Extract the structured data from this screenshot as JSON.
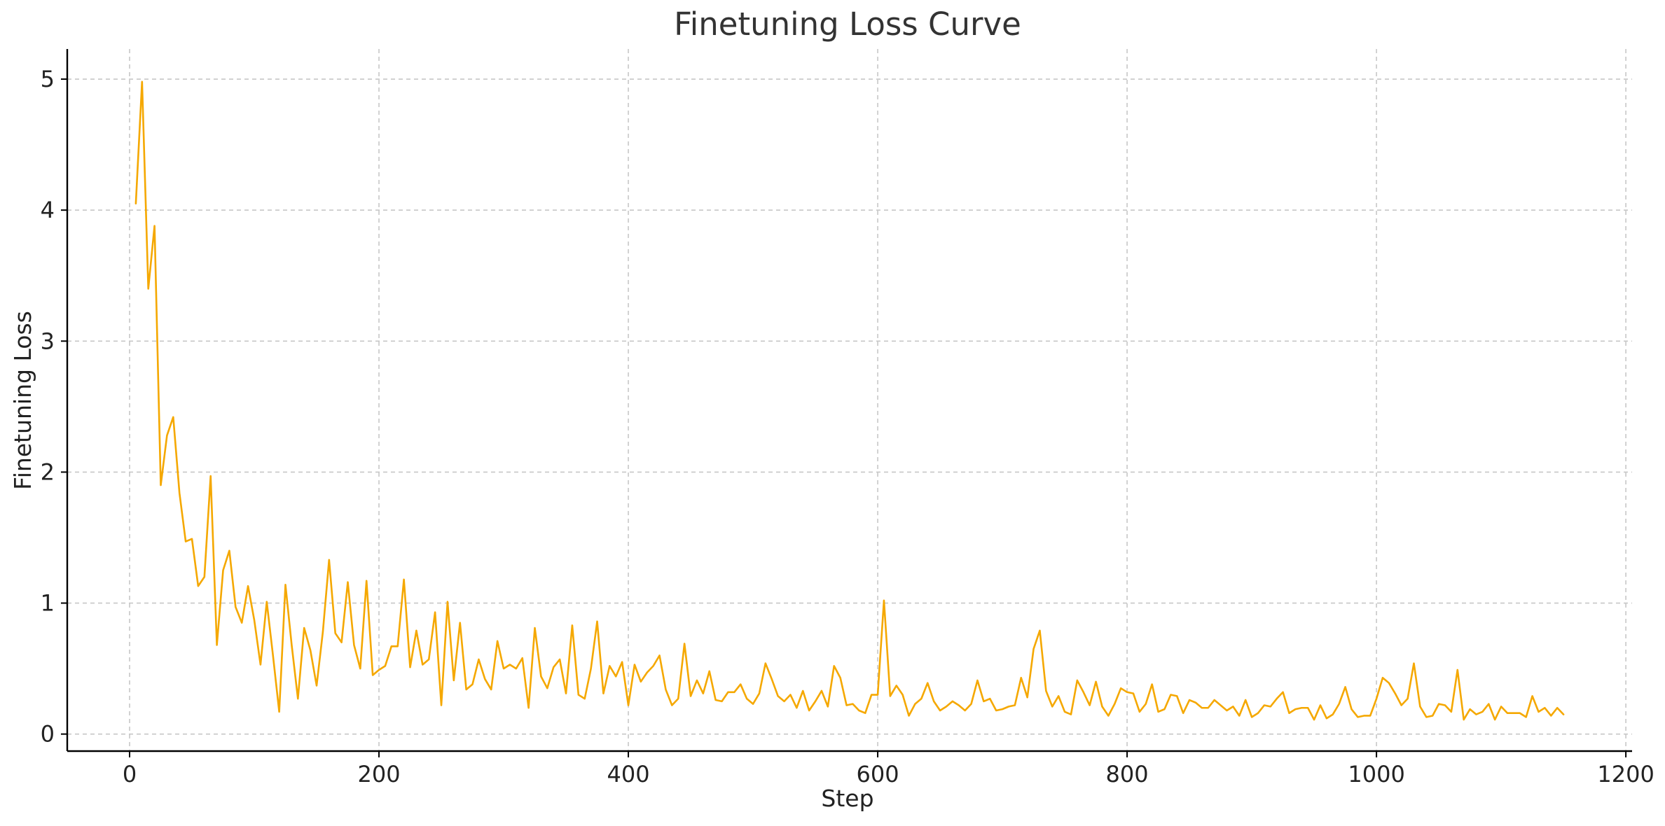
{
  "chart_data": {
    "type": "line",
    "title": "Finetuning Loss Curve",
    "xlabel": "Step",
    "ylabel": "Finetuning Loss",
    "xlim": [
      -50,
      1205
    ],
    "ylim": [
      -0.13,
      5.23
    ],
    "xticks": [
      0,
      200,
      400,
      600,
      800,
      1000,
      1200
    ],
    "yticks": [
      0,
      1,
      2,
      3,
      4,
      5
    ],
    "grid": true,
    "legend": "none",
    "colors": {
      "line": "#f5a800",
      "grid": "#c7c7c7",
      "axis": "#000000"
    },
    "series": [
      {
        "x": [
          5,
          10,
          15,
          20,
          25,
          30,
          35,
          40,
          45,
          50,
          55,
          60,
          65,
          70,
          75,
          80,
          85,
          90,
          95,
          100,
          105,
          110,
          115,
          120,
          125,
          130,
          135,
          140,
          145,
          150,
          155,
          160,
          165,
          170,
          175,
          180,
          185,
          190,
          195,
          200,
          205,
          210,
          215,
          220,
          225,
          230,
          235,
          240,
          245,
          250,
          255,
          260,
          265,
          270,
          275,
          280,
          285,
          290,
          295,
          300,
          305,
          310,
          315,
          320,
          325,
          330,
          335,
          340,
          345,
          350,
          355,
          360,
          365,
          370,
          375,
          380,
          385,
          390,
          395,
          400,
          405,
          410,
          415,
          420,
          425,
          430,
          435,
          440,
          445,
          450,
          455,
          460,
          465,
          470,
          475,
          480,
          485,
          490,
          495,
          500,
          505,
          510,
          515,
          520,
          525,
          530,
          535,
          540,
          545,
          550,
          555,
          560,
          565,
          570,
          575,
          580,
          585,
          590,
          595,
          600,
          605,
          610,
          615,
          620,
          625,
          630,
          635,
          640,
          645,
          650,
          655,
          660,
          665,
          670,
          675,
          680,
          685,
          690,
          695,
          700,
          705,
          710,
          715,
          720,
          725,
          730,
          735,
          740,
          745,
          750,
          755,
          760,
          765,
          770,
          775,
          780,
          785,
          790,
          795,
          800,
          805,
          810,
          815,
          820,
          825,
          830,
          835,
          840,
          845,
          850,
          855,
          860,
          865,
          870,
          875,
          880,
          885,
          890,
          895,
          900,
          905,
          910,
          915,
          920,
          925,
          930,
          935,
          940,
          945,
          950,
          955,
          960,
          965,
          970,
          975,
          980,
          985,
          990,
          995,
          1000,
          1005,
          1010,
          1015,
          1020,
          1025,
          1030,
          1035,
          1040,
          1045,
          1050,
          1055,
          1060,
          1065,
          1070,
          1075,
          1080,
          1085,
          1090,
          1095,
          1100,
          1105,
          1110,
          1115,
          1120,
          1125,
          1130,
          1135,
          1140,
          1145,
          1150
        ],
        "y": [
          4.05,
          4.98,
          3.4,
          3.88,
          1.9,
          2.28,
          2.42,
          1.84,
          1.47,
          1.49,
          1.13,
          1.2,
          1.97,
          0.68,
          1.25,
          1.4,
          0.97,
          0.85,
          1.13,
          0.87,
          0.53,
          1.01,
          0.6,
          0.17,
          1.14,
          0.68,
          0.27,
          0.81,
          0.64,
          0.37,
          0.78,
          1.33,
          0.77,
          0.7,
          1.16,
          0.68,
          0.5,
          1.17,
          0.45,
          0.49,
          0.52,
          0.67,
          0.67,
          1.18,
          0.51,
          0.79,
          0.53,
          0.57,
          0.93,
          0.22,
          1.01,
          0.41,
          0.85,
          0.34,
          0.38,
          0.57,
          0.42,
          0.34,
          0.71,
          0.5,
          0.53,
          0.5,
          0.58,
          0.2,
          0.81,
          0.44,
          0.35,
          0.51,
          0.57,
          0.31,
          0.83,
          0.3,
          0.27,
          0.5,
          0.86,
          0.31,
          0.52,
          0.44,
          0.55,
          0.22,
          0.53,
          0.4,
          0.47,
          0.52,
          0.6,
          0.34,
          0.22,
          0.27,
          0.69,
          0.29,
          0.41,
          0.31,
          0.48,
          0.26,
          0.25,
          0.32,
          0.32,
          0.38,
          0.27,
          0.23,
          0.31,
          0.54,
          0.42,
          0.29,
          0.25,
          0.3,
          0.2,
          0.33,
          0.18,
          0.25,
          0.33,
          0.21,
          0.52,
          0.43,
          0.22,
          0.23,
          0.18,
          0.16,
          0.3,
          0.3,
          1.02,
          0.29,
          0.37,
          0.3,
          0.14,
          0.23,
          0.27,
          0.39,
          0.25,
          0.18,
          0.21,
          0.25,
          0.22,
          0.18,
          0.23,
          0.41,
          0.25,
          0.27,
          0.18,
          0.19,
          0.21,
          0.22,
          0.43,
          0.28,
          0.65,
          0.79,
          0.33,
          0.21,
          0.29,
          0.17,
          0.15,
          0.41,
          0.32,
          0.22,
          0.4,
          0.21,
          0.14,
          0.23,
          0.35,
          0.32,
          0.31,
          0.17,
          0.23,
          0.38,
          0.17,
          0.19,
          0.3,
          0.29,
          0.16,
          0.26,
          0.24,
          0.2,
          0.2,
          0.26,
          0.22,
          0.18,
          0.21,
          0.14,
          0.26,
          0.13,
          0.16,
          0.22,
          0.21,
          0.27,
          0.32,
          0.16,
          0.19,
          0.2,
          0.2,
          0.11,
          0.22,
          0.12,
          0.15,
          0.23,
          0.36,
          0.19,
          0.13,
          0.14,
          0.14,
          0.27,
          0.43,
          0.39,
          0.31,
          0.22,
          0.27,
          0.54,
          0.21,
          0.13,
          0.14,
          0.23,
          0.22,
          0.17,
          0.49,
          0.11,
          0.19,
          0.15,
          0.17,
          0.23,
          0.11,
          0.21,
          0.16,
          0.16,
          0.16,
          0.13,
          0.29,
          0.17,
          0.2,
          0.14,
          0.2,
          0.15
        ]
      }
    ]
  }
}
